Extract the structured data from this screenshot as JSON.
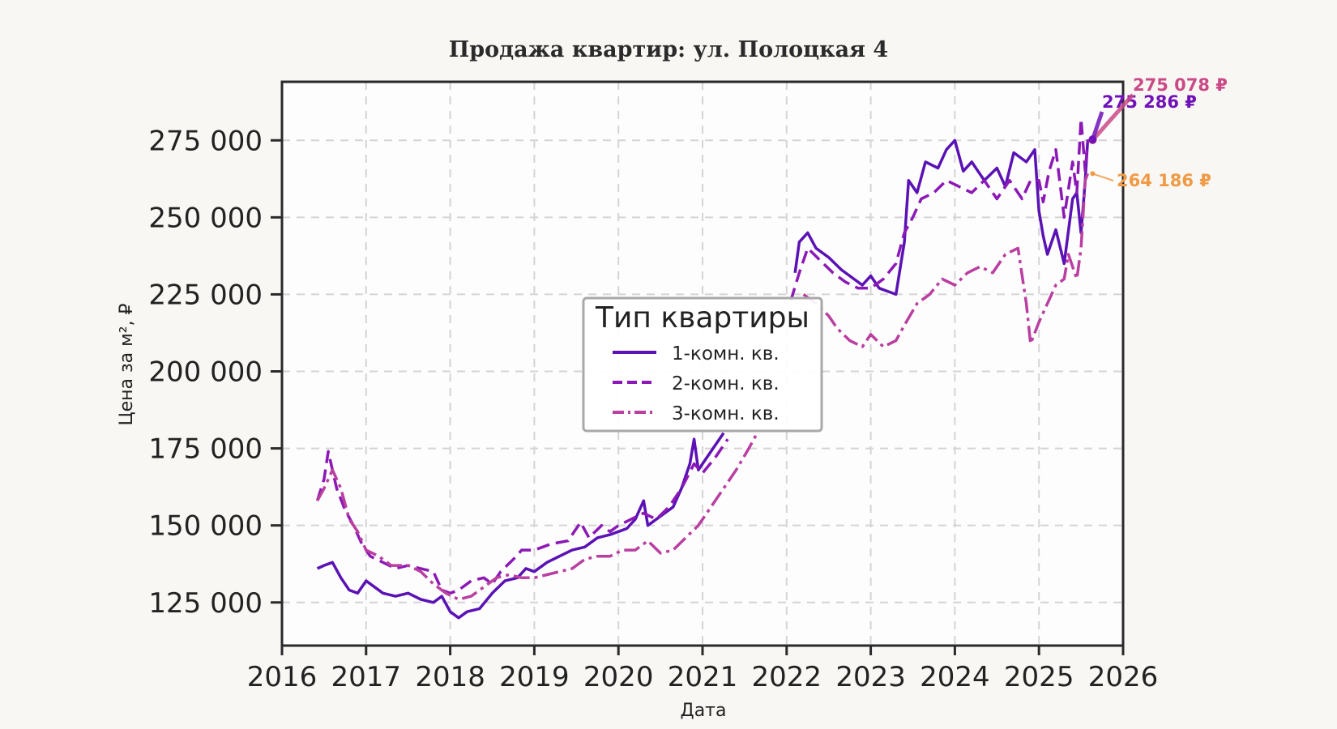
{
  "chart_data": {
    "type": "line",
    "title": "Продажа квартир: ул. Полоцкая 4",
    "xlabel": "Дата",
    "ylabel": "Цена за м², ₽",
    "xlim": [
      2016,
      2026
    ],
    "ylim": [
      111000,
      294000
    ],
    "x_ticks": [
      "2016",
      "2017",
      "2018",
      "2019",
      "2020",
      "2021",
      "2022",
      "2023",
      "2024",
      "2025",
      "2026"
    ],
    "y_ticks": [
      {
        "value": 125000,
        "label": "125 000"
      },
      {
        "value": 150000,
        "label": "150 000"
      },
      {
        "value": 175000,
        "label": "175 000"
      },
      {
        "value": 200000,
        "label": "200 000"
      },
      {
        "value": 225000,
        "label": "225 000"
      },
      {
        "value": 250000,
        "label": "250 000"
      },
      {
        "value": 275000,
        "label": "275 000"
      }
    ],
    "grid": true,
    "legend": {
      "title": "Тип квартиры",
      "placement": "center"
    },
    "series": [
      {
        "name": "1-комн. кв.",
        "color": "#5b12b5",
        "dash": "solid",
        "points": [
          [
            2016.42,
            136000
          ],
          [
            2016.5,
            137000
          ],
          [
            2016.6,
            138000
          ],
          [
            2016.7,
            133000
          ],
          [
            2016.8,
            129000
          ],
          [
            2016.9,
            128000
          ],
          [
            2017.0,
            132000
          ],
          [
            2017.1,
            130000
          ],
          [
            2017.2,
            128000
          ],
          [
            2017.35,
            127000
          ],
          [
            2017.5,
            128000
          ],
          [
            2017.65,
            126000
          ],
          [
            2017.8,
            125000
          ],
          [
            2017.9,
            127000
          ],
          [
            2018.0,
            122000
          ],
          [
            2018.1,
            120000
          ],
          [
            2018.2,
            122000
          ],
          [
            2018.35,
            123000
          ],
          [
            2018.5,
            128000
          ],
          [
            2018.65,
            132000
          ],
          [
            2018.8,
            133000
          ],
          [
            2018.9,
            136000
          ],
          [
            2019.0,
            135000
          ],
          [
            2019.15,
            138000
          ],
          [
            2019.3,
            140000
          ],
          [
            2019.45,
            142000
          ],
          [
            2019.6,
            143000
          ],
          [
            2019.75,
            146000
          ],
          [
            2019.9,
            147000
          ],
          [
            2020.0,
            148000
          ],
          [
            2020.1,
            149000
          ],
          [
            2020.2,
            152000
          ],
          [
            2020.3,
            158000
          ],
          [
            2020.35,
            150000
          ],
          [
            2020.5,
            153000
          ],
          [
            2020.65,
            156000
          ],
          [
            2020.75,
            162000
          ],
          [
            2020.85,
            170000
          ],
          [
            2020.9,
            178000
          ],
          [
            2020.95,
            168000
          ],
          [
            2021.05,
            172000
          ],
          [
            2021.15,
            176000
          ],
          [
            2021.25,
            180000
          ]
        ],
        "points_late": [
          [
            2022.1,
            232000
          ],
          [
            2022.15,
            242000
          ],
          [
            2022.25,
            245000
          ],
          [
            2022.35,
            240000
          ],
          [
            2022.5,
            237000
          ],
          [
            2022.65,
            233000
          ],
          [
            2022.8,
            230000
          ],
          [
            2022.9,
            228000
          ],
          [
            2023.0,
            231000
          ],
          [
            2023.1,
            227000
          ],
          [
            2023.2,
            226000
          ],
          [
            2023.3,
            225000
          ],
          [
            2023.4,
            242000
          ],
          [
            2023.45,
            262000
          ],
          [
            2023.55,
            258000
          ],
          [
            2023.65,
            268000
          ],
          [
            2023.8,
            266000
          ],
          [
            2023.9,
            272000
          ],
          [
            2024.0,
            275000
          ],
          [
            2024.1,
            265000
          ],
          [
            2024.2,
            268000
          ],
          [
            2024.35,
            262000
          ],
          [
            2024.5,
            266000
          ],
          [
            2024.6,
            260000
          ],
          [
            2024.7,
            271000
          ],
          [
            2024.85,
            268000
          ],
          [
            2024.95,
            272000
          ],
          [
            2025.0,
            252000
          ],
          [
            2025.05,
            244000
          ],
          [
            2025.1,
            238000
          ],
          [
            2025.2,
            246000
          ],
          [
            2025.3,
            235000
          ],
          [
            2025.4,
            256000
          ],
          [
            2025.45,
            258000
          ],
          [
            2025.5,
            245000
          ],
          [
            2025.55,
            262000
          ],
          [
            2025.58,
            275286
          ]
        ]
      },
      {
        "name": "2-комн. кв.",
        "color": "#8c19b5",
        "dash": "16,8",
        "points": [
          [
            2016.42,
            158000
          ],
          [
            2016.5,
            165000
          ],
          [
            2016.55,
            174000
          ],
          [
            2016.65,
            162000
          ],
          [
            2016.75,
            155000
          ],
          [
            2016.85,
            150000
          ],
          [
            2016.95,
            144000
          ],
          [
            2017.05,
            140000
          ],
          [
            2017.2,
            138000
          ],
          [
            2017.35,
            136000
          ],
          [
            2017.5,
            137000
          ],
          [
            2017.65,
            136000
          ],
          [
            2017.8,
            135000
          ],
          [
            2017.9,
            129000
          ],
          [
            2018.0,
            128000
          ],
          [
            2018.1,
            129000
          ],
          [
            2018.25,
            132000
          ],
          [
            2018.4,
            133000
          ],
          [
            2018.5,
            131000
          ],
          [
            2018.6,
            135000
          ],
          [
            2018.75,
            139000
          ],
          [
            2018.85,
            142000
          ],
          [
            2019.0,
            142000
          ],
          [
            2019.2,
            144000
          ],
          [
            2019.4,
            145000
          ],
          [
            2019.55,
            151000
          ],
          [
            2019.65,
            146000
          ],
          [
            2019.8,
            150000
          ],
          [
            2019.9,
            148000
          ],
          [
            2020.0,
            150000
          ],
          [
            2020.15,
            152000
          ],
          [
            2020.3,
            154000
          ],
          [
            2020.45,
            152000
          ],
          [
            2020.6,
            156000
          ],
          [
            2020.75,
            162000
          ],
          [
            2020.9,
            170000
          ],
          [
            2021.0,
            167000
          ],
          [
            2021.15,
            172000
          ],
          [
            2021.3,
            178000
          ]
        ],
        "points_late": [
          [
            2022.05,
            223000
          ],
          [
            2022.15,
            232000
          ],
          [
            2022.25,
            240000
          ],
          [
            2022.4,
            236000
          ],
          [
            2022.55,
            232000
          ],
          [
            2022.7,
            229000
          ],
          [
            2022.85,
            227000
          ],
          [
            2023.0,
            227000
          ],
          [
            2023.15,
            230000
          ],
          [
            2023.3,
            235000
          ],
          [
            2023.4,
            245000
          ],
          [
            2023.5,
            250000
          ],
          [
            2023.6,
            256000
          ],
          [
            2023.75,
            258000
          ],
          [
            2023.9,
            262000
          ],
          [
            2024.05,
            260000
          ],
          [
            2024.2,
            258000
          ],
          [
            2024.35,
            262000
          ],
          [
            2024.5,
            256000
          ],
          [
            2024.65,
            262000
          ],
          [
            2024.8,
            256000
          ],
          [
            2024.9,
            262000
          ],
          [
            2025.0,
            262000
          ],
          [
            2025.05,
            255000
          ],
          [
            2025.12,
            265000
          ],
          [
            2025.2,
            272000
          ],
          [
            2025.3,
            250000
          ],
          [
            2025.4,
            268000
          ],
          [
            2025.45,
            258000
          ],
          [
            2025.5,
            282000
          ],
          [
            2025.55,
            265000
          ],
          [
            2025.58,
            275078
          ]
        ]
      },
      {
        "name": "3-комн. кв.",
        "color": "#b93fa0",
        "dash": "20,6,4,6",
        "points": [
          [
            2016.42,
            158000
          ],
          [
            2016.5,
            162000
          ],
          [
            2016.6,
            168000
          ],
          [
            2016.7,
            162000
          ],
          [
            2016.8,
            152000
          ],
          [
            2016.9,
            148000
          ],
          [
            2017.0,
            142000
          ],
          [
            2017.15,
            140000
          ],
          [
            2017.3,
            137000
          ],
          [
            2017.5,
            137000
          ],
          [
            2017.65,
            135000
          ],
          [
            2017.8,
            131000
          ],
          [
            2017.95,
            128000
          ],
          [
            2018.1,
            126000
          ],
          [
            2018.25,
            127000
          ],
          [
            2018.4,
            130000
          ],
          [
            2018.55,
            133000
          ],
          [
            2018.7,
            134000
          ],
          [
            2018.85,
            133000
          ],
          [
            2019.0,
            133000
          ],
          [
            2019.15,
            134000
          ],
          [
            2019.3,
            135000
          ],
          [
            2019.45,
            136000
          ],
          [
            2019.6,
            139000
          ],
          [
            2019.75,
            140000
          ],
          [
            2019.9,
            140000
          ],
          [
            2020.05,
            142000
          ],
          [
            2020.2,
            142000
          ],
          [
            2020.35,
            145000
          ],
          [
            2020.5,
            141000
          ],
          [
            2020.65,
            142000
          ],
          [
            2020.8,
            146000
          ],
          [
            2020.95,
            150000
          ],
          [
            2021.1,
            156000
          ],
          [
            2021.25,
            162000
          ],
          [
            2021.4,
            168000
          ],
          [
            2021.55,
            175000
          ],
          [
            2021.65,
            180000
          ]
        ],
        "points_late": [
          [
            2022.2,
            225000
          ],
          [
            2022.35,
            222000
          ],
          [
            2022.5,
            218000
          ],
          [
            2022.6,
            214000
          ],
          [
            2022.75,
            210000
          ],
          [
            2022.9,
            208000
          ],
          [
            2023.0,
            212000
          ],
          [
            2023.15,
            208000
          ],
          [
            2023.3,
            210000
          ],
          [
            2023.4,
            215000
          ],
          [
            2023.55,
            222000
          ],
          [
            2023.7,
            225000
          ],
          [
            2023.85,
            230000
          ],
          [
            2024.0,
            228000
          ],
          [
            2024.15,
            232000
          ],
          [
            2024.3,
            234000
          ],
          [
            2024.45,
            232000
          ],
          [
            2024.6,
            238000
          ],
          [
            2024.75,
            240000
          ],
          [
            2024.85,
            222000
          ],
          [
            2024.9,
            209000
          ],
          [
            2025.0,
            216000
          ],
          [
            2025.1,
            222000
          ],
          [
            2025.2,
            228000
          ],
          [
            2025.3,
            230000
          ],
          [
            2025.35,
            238000
          ],
          [
            2025.45,
            230000
          ],
          [
            2025.5,
            240000
          ],
          [
            2025.55,
            262000
          ],
          [
            2025.58,
            264186
          ]
        ]
      }
    ],
    "annotations": [
      {
        "text": "275 078 ₽",
        "color": "#c94a87",
        "series": "2-комн. кв."
      },
      {
        "text": "275 286 ₽",
        "color": "#7012b8",
        "series": "1-комн. кв."
      },
      {
        "text": "264 186 ₽",
        "color": "#f09a46",
        "series": "3-комн. кв."
      }
    ]
  }
}
